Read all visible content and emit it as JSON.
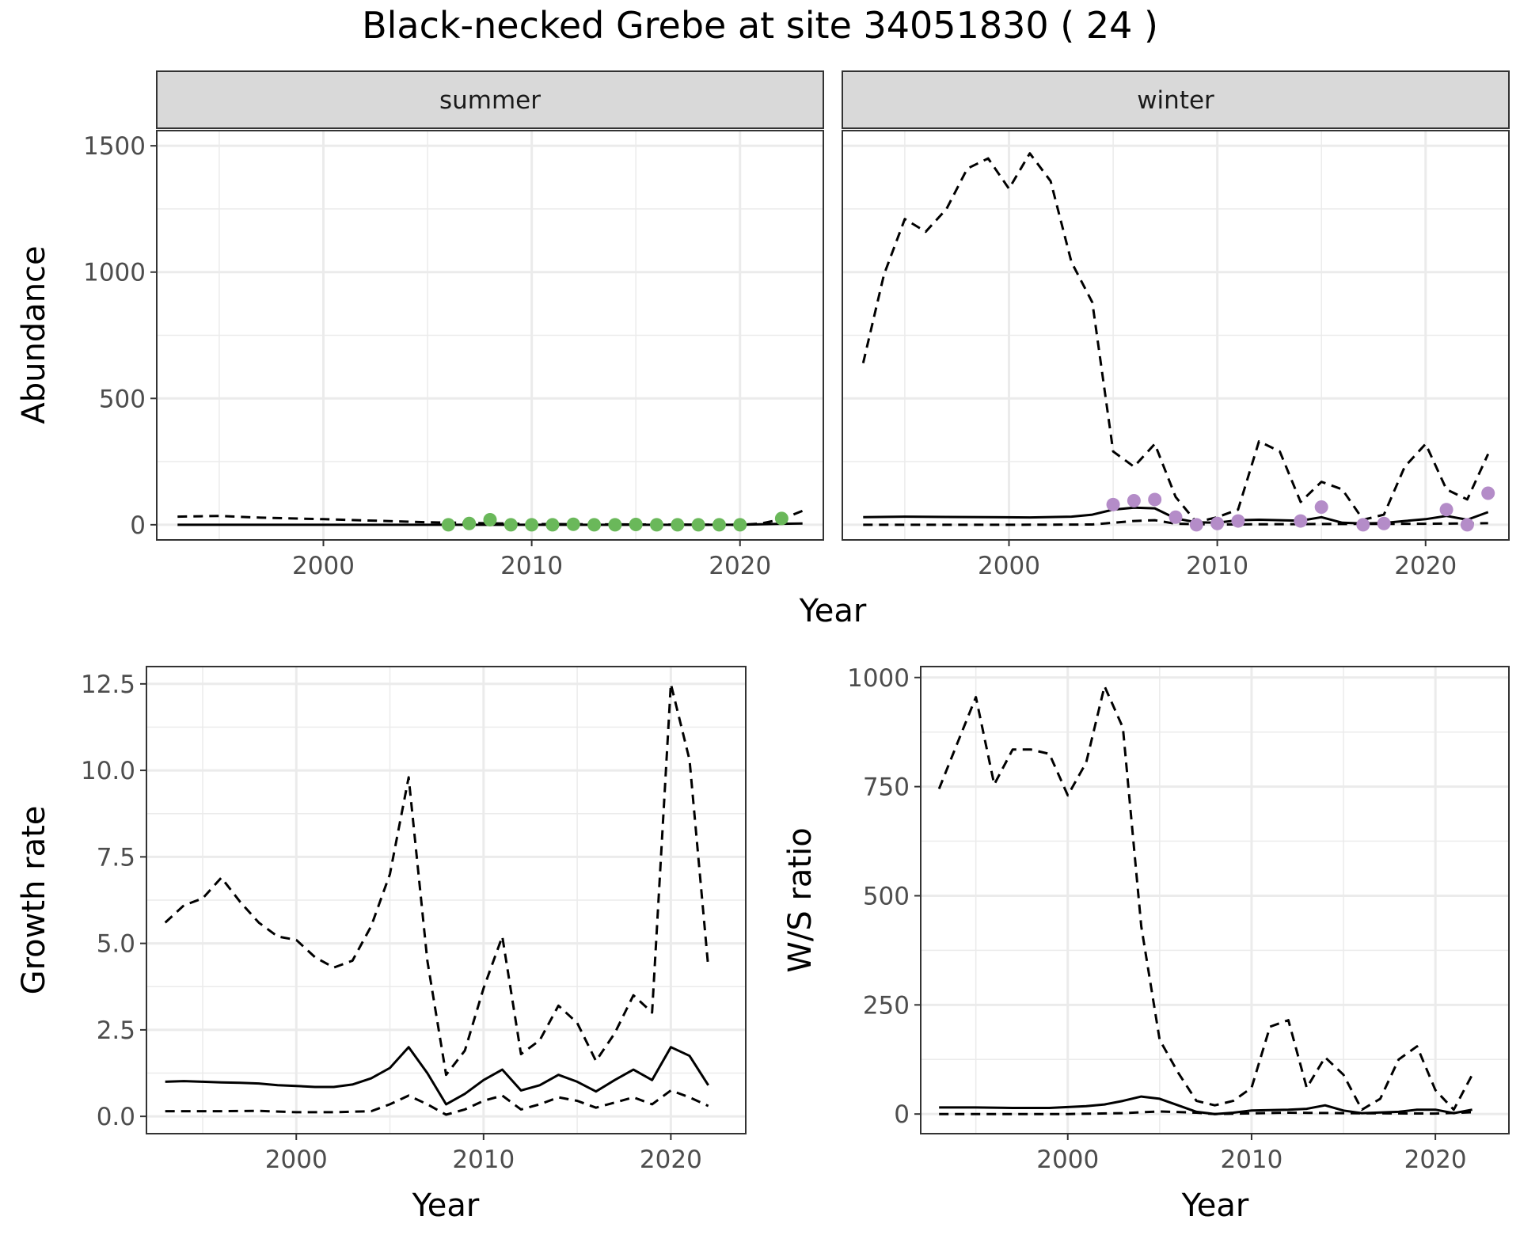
{
  "figure": {
    "title": "Black-necked Grebe at site 34051830 ( 24 )"
  },
  "colors": {
    "summer_points": "#6ab85a",
    "winter_points": "#b48cc8",
    "line": "#000000",
    "strip_fill": "#d9d9d9",
    "grid": "#ebebeb"
  },
  "chart_data": [
    {
      "type": "line",
      "facet": "summer",
      "title": "",
      "xlabel": "Year",
      "ylabel": "Abundance",
      "xlim": [
        1992,
        2024
      ],
      "ylim": [
        -60,
        1560
      ],
      "xticks": [
        2000,
        2010,
        2020
      ],
      "yticks": [
        0,
        500,
        1000,
        1500
      ],
      "grid": true,
      "series": [
        {
          "style": "solid",
          "x": [
            1993,
            1995,
            2000,
            2005,
            2010,
            2015,
            2020,
            2022,
            2023
          ],
          "y": [
            0,
            0,
            0,
            0,
            0,
            0,
            0,
            4,
            5
          ]
        },
        {
          "style": "dashed",
          "x": [
            1993,
            1995,
            1997,
            2000,
            2005,
            2010,
            2015,
            2020,
            2021,
            2022,
            2023
          ],
          "y": [
            32,
            35,
            28,
            22,
            10,
            3,
            1,
            0,
            5,
            22,
            55
          ]
        }
      ],
      "points": {
        "x": [
          2006,
          2007,
          2008,
          2009,
          2010,
          2011,
          2012,
          2013,
          2014,
          2015,
          2016,
          2017,
          2018,
          2019,
          2020,
          2022
        ],
        "y": [
          0,
          5,
          20,
          0,
          0,
          0,
          2,
          0,
          0,
          1,
          0,
          0,
          0,
          0,
          0,
          25
        ]
      }
    },
    {
      "type": "line",
      "facet": "winter",
      "title": "",
      "xlabel": "Year",
      "ylabel": "Abundance",
      "xlim": [
        1992,
        2024
      ],
      "ylim": [
        -60,
        1560
      ],
      "xticks": [
        2000,
        2010,
        2020
      ],
      "yticks": [
        0,
        500,
        1000,
        1500
      ],
      "grid": true,
      "series": [
        {
          "style": "solid",
          "x": [
            1993,
            1995,
            1997,
            1999,
            2001,
            2003,
            2004,
            2005,
            2006,
            2007,
            2008,
            2009,
            2010,
            2011,
            2012,
            2013,
            2014,
            2015,
            2016,
            2017,
            2018,
            2019,
            2020,
            2021,
            2022,
            2023
          ],
          "y": [
            30,
            32,
            31,
            30,
            29,
            32,
            40,
            60,
            68,
            65,
            25,
            10,
            8,
            18,
            20,
            18,
            16,
            30,
            8,
            5,
            7,
            15,
            22,
            35,
            20,
            50
          ]
        },
        {
          "style": "dashed",
          "x": [
            1993,
            1994,
            1995,
            1996,
            1997,
            1998,
            1999,
            2000,
            2001,
            2002,
            2003,
            2004,
            2005,
            2006,
            2007,
            2008,
            2009,
            2010,
            2011,
            2012,
            2013,
            2014,
            2015,
            2016,
            2017,
            2018,
            2019,
            2020,
            2021,
            2022,
            2023
          ],
          "y": [
            640,
            990,
            1210,
            1160,
            1250,
            1410,
            1450,
            1330,
            1470,
            1360,
            1040,
            880,
            290,
            230,
            320,
            110,
            10,
            30,
            60,
            330,
            290,
            90,
            170,
            140,
            20,
            40,
            230,
            320,
            140,
            100,
            280
          ]
        },
        {
          "style": "dashed",
          "x": [
            1993,
            2000,
            2004,
            2005,
            2006,
            2007,
            2008,
            2010,
            2015,
            2020,
            2023
          ],
          "y": [
            0,
            0,
            1,
            8,
            15,
            18,
            4,
            1,
            3,
            4,
            6
          ]
        }
      ],
      "points": {
        "x": [
          2005,
          2006,
          2007,
          2008,
          2009,
          2010,
          2011,
          2014,
          2015,
          2017,
          2018,
          2021,
          2022,
          2023
        ],
        "y": [
          80,
          95,
          100,
          30,
          0,
          5,
          15,
          15,
          70,
          0,
          5,
          60,
          0,
          125
        ]
      }
    },
    {
      "type": "line",
      "title": "",
      "xlabel": "Year",
      "ylabel": "Growth rate",
      "xlim": [
        1992,
        2024
      ],
      "ylim": [
        -0.5,
        13.0
      ],
      "xticks": [
        2000,
        2010,
        2020
      ],
      "yticks": [
        0.0,
        2.5,
        5.0,
        7.5,
        10.0,
        12.5
      ],
      "ytick_labels": [
        "0.0",
        "2.5",
        "5.0",
        "7.5",
        "10.0",
        "12.5"
      ],
      "grid": true,
      "series": [
        {
          "style": "solid",
          "x": [
            1993,
            1994,
            1995,
            1996,
            1997,
            1998,
            1999,
            2000,
            2001,
            2002,
            2003,
            2004,
            2005,
            2006,
            2007,
            2008,
            2009,
            2010,
            2011,
            2012,
            2013,
            2014,
            2015,
            2016,
            2017,
            2018,
            2019,
            2020,
            2021,
            2022
          ],
          "y": [
            1.0,
            1.02,
            1.0,
            0.98,
            0.97,
            0.95,
            0.9,
            0.88,
            0.85,
            0.85,
            0.92,
            1.1,
            1.4,
            2.0,
            1.25,
            0.35,
            0.65,
            1.05,
            1.35,
            0.75,
            0.9,
            1.2,
            1.0,
            0.72,
            1.05,
            1.35,
            1.05,
            2.0,
            1.75,
            0.9
          ]
        },
        {
          "style": "dashed",
          "x": [
            1993,
            1994,
            1995,
            1996,
            1997,
            1998,
            1999,
            2000,
            2001,
            2002,
            2003,
            2004,
            2005,
            2006,
            2007,
            2008,
            2009,
            2010,
            2011,
            2012,
            2013,
            2014,
            2015,
            2016,
            2017,
            2018,
            2019,
            2020,
            2021,
            2022
          ],
          "y": [
            5.6,
            6.1,
            6.3,
            6.9,
            6.2,
            5.6,
            5.2,
            5.1,
            4.6,
            4.3,
            4.5,
            5.5,
            7.0,
            9.8,
            4.5,
            1.2,
            1.9,
            3.7,
            5.2,
            1.8,
            2.2,
            3.2,
            2.7,
            1.6,
            2.4,
            3.5,
            3.0,
            12.5,
            10.3,
            4.3
          ]
        },
        {
          "style": "dashed",
          "x": [
            1993,
            1996,
            1998,
            2000,
            2002,
            2004,
            2005,
            2006,
            2007,
            2008,
            2009,
            2010,
            2011,
            2012,
            2013,
            2014,
            2015,
            2016,
            2017,
            2018,
            2019,
            2020,
            2021,
            2022
          ],
          "y": [
            0.15,
            0.15,
            0.16,
            0.12,
            0.12,
            0.15,
            0.35,
            0.6,
            0.35,
            0.05,
            0.2,
            0.45,
            0.6,
            0.2,
            0.35,
            0.55,
            0.45,
            0.25,
            0.4,
            0.55,
            0.35,
            0.75,
            0.55,
            0.3
          ]
        }
      ]
    },
    {
      "type": "line",
      "title": "",
      "xlabel": "Year",
      "ylabel": "W/S ratio",
      "xlim": [
        1992,
        2024
      ],
      "ylim": [
        -45,
        1025
      ],
      "xticks": [
        2000,
        2010,
        2020
      ],
      "yticks": [
        0,
        250,
        500,
        750,
        1000
      ],
      "grid": true,
      "series": [
        {
          "style": "dashed",
          "x": [
            1993,
            1994,
            1995,
            1996,
            1997,
            1998,
            1999,
            2000,
            2001,
            2002,
            2003,
            2004,
            2005,
            2006,
            2007,
            2008,
            2009,
            2010,
            2011,
            2012,
            2013,
            2014,
            2015,
            2016,
            2017,
            2018,
            2019,
            2020,
            2021,
            2022
          ],
          "y": [
            745,
            850,
            955,
            755,
            835,
            835,
            825,
            730,
            805,
            980,
            885,
            430,
            170,
            95,
            30,
            20,
            30,
            60,
            200,
            215,
            60,
            130,
            90,
            10,
            35,
            125,
            155,
            55,
            10,
            90
          ]
        },
        {
          "style": "solid",
          "x": [
            1993,
            1995,
            1997,
            1999,
            2001,
            2002,
            2003,
            2004,
            2005,
            2006,
            2007,
            2008,
            2009,
            2010,
            2012,
            2013,
            2014,
            2015,
            2016,
            2018,
            2019,
            2020,
            2021,
            2022
          ],
          "y": [
            15,
            15,
            14,
            14,
            18,
            22,
            30,
            40,
            35,
            20,
            5,
            0,
            3,
            8,
            10,
            12,
            20,
            8,
            2,
            5,
            10,
            10,
            2,
            10
          ]
        },
        {
          "style": "dashed",
          "x": [
            1993,
            2000,
            2003,
            2005,
            2007,
            2008,
            2012,
            2015,
            2020,
            2022
          ],
          "y": [
            0,
            0,
            2,
            6,
            3,
            0,
            3,
            2,
            1,
            4
          ]
        }
      ]
    }
  ]
}
